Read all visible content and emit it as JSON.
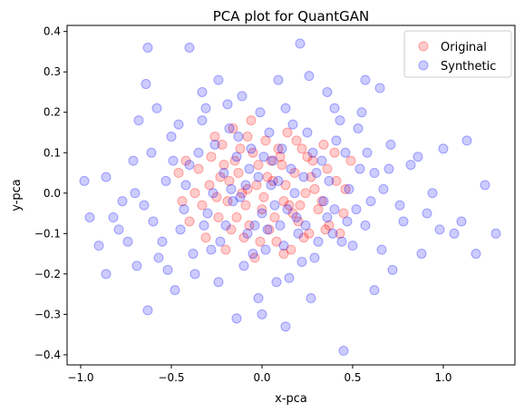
{
  "chart_data": {
    "type": "scatter",
    "title": "PCA plot for QuantGAN",
    "xlabel": "x-pca",
    "ylabel": "y-pca",
    "xlim": [
      -1.075,
      1.395
    ],
    "ylim": [
      -0.425,
      0.415
    ],
    "x_ticks": [
      -1.0,
      -0.5,
      0.0,
      0.5,
      1.0
    ],
    "x_tick_labels": [
      "−1.0",
      "−0.5",
      "0.0",
      "0.5",
      "1.0"
    ],
    "y_ticks": [
      -0.4,
      -0.3,
      -0.2,
      -0.1,
      0.0,
      0.1,
      0.2,
      0.3,
      0.4
    ],
    "y_tick_labels": [
      "−0.4",
      "−0.3",
      "−0.2",
      "−0.1",
      "0.0",
      "0.1",
      "0.2",
      "0.3",
      "0.4"
    ],
    "grid": false,
    "legend_position": "top-right",
    "series": [
      {
        "name": "Original",
        "color": "#ff0000",
        "alpha": 0.2,
        "points": [
          [
            -0.46,
            0.05
          ],
          [
            -0.4,
            -0.07
          ],
          [
            -0.35,
            0.06
          ],
          [
            -0.31,
            -0.11
          ],
          [
            -0.28,
            0.09
          ],
          [
            -0.25,
            -0.01
          ],
          [
            -0.22,
            0.12
          ],
          [
            -0.2,
            -0.14
          ],
          [
            -0.18,
            0.03
          ],
          [
            -0.16,
            0.16
          ],
          [
            -0.14,
            -0.06
          ],
          [
            -0.12,
            0.11
          ],
          [
            -0.1,
            -0.11
          ],
          [
            -0.08,
            0.01
          ],
          [
            -0.06,
            0.18
          ],
          [
            -0.04,
            -0.16
          ],
          [
            -0.02,
            0.07
          ],
          [
            0.0,
            -0.04
          ],
          [
            0.02,
            0.13
          ],
          [
            0.04,
            -0.09
          ],
          [
            0.06,
            0.03
          ],
          [
            0.08,
            -0.12
          ],
          [
            0.1,
            0.09
          ],
          [
            0.12,
            -0.02
          ],
          [
            0.14,
            0.15
          ],
          [
            0.16,
            -0.14
          ],
          [
            0.18,
            0.05
          ],
          [
            0.2,
            -0.07
          ],
          [
            0.22,
            0.11
          ],
          [
            0.24,
            0.0
          ],
          [
            0.26,
            -0.1
          ],
          [
            0.28,
            0.08
          ],
          [
            0.31,
            -0.04
          ],
          [
            0.34,
            0.12
          ],
          [
            0.37,
            -0.08
          ],
          [
            0.41,
            0.03
          ],
          [
            0.45,
            -0.05
          ],
          [
            0.49,
            0.08
          ],
          [
            -0.29,
            0.02
          ],
          [
            -0.24,
            -0.06
          ],
          [
            -0.21,
            0.07
          ],
          [
            -0.17,
            -0.09
          ],
          [
            -0.13,
            0.05
          ],
          [
            -0.09,
            -0.03
          ],
          [
            -0.05,
            0.1
          ],
          [
            -0.01,
            -0.12
          ],
          [
            0.03,
            0.04
          ],
          [
            0.07,
            -0.06
          ],
          [
            0.11,
            0.07
          ],
          [
            0.15,
            -0.03
          ],
          [
            0.19,
            0.13
          ],
          [
            0.23,
            -0.11
          ],
          [
            0.27,
            0.04
          ],
          [
            0.33,
            -0.02
          ],
          [
            -0.33,
            -0.03
          ],
          [
            -0.26,
            0.14
          ],
          [
            -0.19,
            -0.02
          ],
          [
            -0.11,
            0.0
          ],
          [
            -0.03,
            0.02
          ],
          [
            0.05,
            0.08
          ],
          [
            0.13,
            0.02
          ],
          [
            0.21,
            -0.03
          ],
          [
            0.29,
            0.01
          ],
          [
            0.36,
            0.06
          ],
          [
            -0.15,
            0.08
          ],
          [
            -0.07,
            -0.08
          ],
          [
            0.01,
            -0.01
          ],
          [
            0.09,
            0.11
          ],
          [
            0.17,
            -0.05
          ],
          [
            0.25,
            0.09
          ],
          [
            -0.37,
            0.0
          ],
          [
            -0.44,
            -0.02
          ],
          [
            0.4,
            0.1
          ],
          [
            0.43,
            -0.1
          ],
          [
            -0.23,
            0.04
          ],
          [
            0.35,
            -0.09
          ],
          [
            -0.08,
            0.14
          ],
          [
            0.12,
            -0.15
          ],
          [
            0.46,
            0.01
          ],
          [
            -0.42,
            0.08
          ]
        ]
      },
      {
        "name": "Synthetic",
        "color": "#0000ff",
        "alpha": 0.2,
        "points": [
          [
            -0.98,
            0.03
          ],
          [
            -0.95,
            -0.06
          ],
          [
            -0.9,
            -0.13
          ],
          [
            -0.82,
            -0.06
          ],
          [
            -0.77,
            -0.02
          ],
          [
            -0.71,
            0.08
          ],
          [
            -0.65,
            -0.03
          ],
          [
            -0.61,
            0.1
          ],
          [
            -0.57,
            -0.16
          ],
          [
            -0.53,
            0.03
          ],
          [
            -0.5,
            0.14
          ],
          [
            -0.45,
            -0.09
          ],
          [
            -0.4,
            0.07
          ],
          [
            -0.37,
            -0.2
          ],
          [
            -0.33,
            0.18
          ],
          [
            -0.3,
            -0.05
          ],
          [
            -0.26,
            0.12
          ],
          [
            -0.23,
            -0.12
          ],
          [
            -0.19,
            0.22
          ],
          [
            -0.16,
            -0.02
          ],
          [
            -0.13,
            0.14
          ],
          [
            -0.1,
            -0.18
          ],
          [
            -0.07,
            0.06
          ],
          [
            -0.04,
            -0.08
          ],
          [
            -0.01,
            0.2
          ],
          [
            0.02,
            -0.14
          ],
          [
            0.05,
            0.02
          ],
          [
            0.08,
            -0.22
          ],
          [
            0.11,
            0.11
          ],
          [
            0.14,
            -0.04
          ],
          [
            0.17,
            0.17
          ],
          [
            0.2,
            -0.1
          ],
          [
            0.23,
            0.04
          ],
          [
            0.26,
            0.29
          ],
          [
            0.29,
            -0.16
          ],
          [
            0.33,
            0.08
          ],
          [
            0.36,
            -0.06
          ],
          [
            0.4,
            0.21
          ],
          [
            0.44,
            -0.12
          ],
          [
            0.48,
            0.01
          ],
          [
            0.53,
            0.16
          ],
          [
            0.57,
            -0.08
          ],
          [
            0.62,
            0.05
          ],
          [
            0.66,
            -0.14
          ],
          [
            0.71,
            0.12
          ],
          [
            0.76,
            -0.03
          ],
          [
            0.82,
            0.07
          ],
          [
            0.88,
            -0.15
          ],
          [
            0.94,
            0.0
          ],
          [
            1.0,
            0.11
          ],
          [
            1.06,
            -0.1
          ],
          [
            1.13,
            0.13
          ],
          [
            1.18,
            -0.15
          ],
          [
            1.23,
            0.02
          ],
          [
            1.29,
            -0.1
          ],
          [
            -0.63,
            0.36
          ],
          [
            -0.4,
            0.36
          ],
          [
            0.21,
            0.37
          ],
          [
            0.45,
            -0.39
          ],
          [
            -0.63,
            -0.29
          ],
          [
            0.13,
            -0.33
          ],
          [
            -0.14,
            -0.31
          ],
          [
            0.0,
            -0.3
          ],
          [
            -0.48,
            -0.24
          ],
          [
            0.62,
            -0.24
          ],
          [
            -0.86,
            -0.2
          ],
          [
            0.72,
            -0.19
          ],
          [
            -0.64,
            0.27
          ],
          [
            0.57,
            0.28
          ],
          [
            0.65,
            0.26
          ],
          [
            -0.33,
            0.25
          ],
          [
            0.36,
            0.25
          ],
          [
            -0.55,
            -0.12
          ],
          [
            -0.42,
            0.02
          ],
          [
            -0.35,
            0.1
          ],
          [
            -0.28,
            -0.14
          ],
          [
            -0.21,
            0.05
          ],
          [
            -0.14,
            0.09
          ],
          [
            -0.08,
            -0.1
          ],
          [
            -0.02,
            0.04
          ],
          [
            0.04,
            0.15
          ],
          [
            0.1,
            -0.08
          ],
          [
            0.16,
            0.06
          ],
          [
            0.22,
            -0.17
          ],
          [
            0.28,
            0.1
          ],
          [
            0.34,
            -0.02
          ],
          [
            0.41,
            0.13
          ],
          [
            0.47,
            -0.07
          ],
          [
            0.54,
            0.06
          ],
          [
            0.6,
            -0.02
          ],
          [
            -0.74,
            -0.12
          ],
          [
            -0.68,
            0.18
          ],
          [
            -0.58,
            0.21
          ],
          [
            -0.52,
            -0.19
          ],
          [
            -0.46,
            0.17
          ],
          [
            -0.38,
            -0.15
          ],
          [
            -0.31,
            0.21
          ],
          [
            -0.24,
            -0.22
          ],
          [
            -0.17,
            0.01
          ],
          [
            -0.11,
            0.24
          ],
          [
            -0.05,
            -0.15
          ],
          [
            0.01,
            0.09
          ],
          [
            0.07,
            -0.03
          ],
          [
            0.13,
            0.21
          ],
          [
            0.19,
            -0.06
          ],
          [
            0.25,
            0.15
          ],
          [
            0.31,
            -0.12
          ],
          [
            0.37,
            0.03
          ],
          [
            0.43,
            0.18
          ],
          [
            0.5,
            -0.13
          ],
          [
            0.58,
            0.1
          ],
          [
            0.67,
            0.01
          ],
          [
            0.78,
            -0.07
          ],
          [
            0.86,
            0.09
          ],
          [
            -0.86,
            0.04
          ],
          [
            -0.79,
            -0.09
          ],
          [
            -0.7,
            0.0
          ],
          [
            -0.6,
            -0.07
          ],
          [
            -0.49,
            0.08
          ],
          [
            -0.43,
            -0.04
          ],
          [
            -0.27,
            0.0
          ],
          [
            -0.2,
            -0.08
          ],
          [
            -0.12,
            -0.01
          ],
          [
            -0.06,
            0.11
          ],
          [
            0.0,
            -0.05
          ],
          [
            0.06,
            0.08
          ],
          [
            0.12,
            -0.13
          ],
          [
            0.18,
            0.0
          ],
          [
            0.24,
            -0.08
          ],
          [
            0.3,
            0.05
          ],
          [
            0.39,
            -0.1
          ],
          [
            0.46,
            0.1
          ],
          [
            0.52,
            -0.04
          ],
          [
            0.7,
            0.06
          ],
          [
            0.91,
            -0.05
          ],
          [
            0.98,
            -0.09
          ],
          [
            1.1,
            -0.07
          ],
          [
            -0.02,
            -0.26
          ],
          [
            0.09,
            0.28
          ],
          [
            -0.24,
            0.28
          ],
          [
            0.27,
            -0.26
          ],
          [
            0.55,
            0.2
          ],
          [
            -0.69,
            -0.18
          ],
          [
            -0.18,
            0.16
          ],
          [
            0.15,
            -0.21
          ],
          [
            -0.09,
            0.02
          ],
          [
            0.03,
            -0.09
          ],
          [
            0.09,
            0.03
          ],
          [
            -0.32,
            -0.08
          ],
          [
            0.4,
            -0.04
          ]
        ]
      }
    ]
  }
}
